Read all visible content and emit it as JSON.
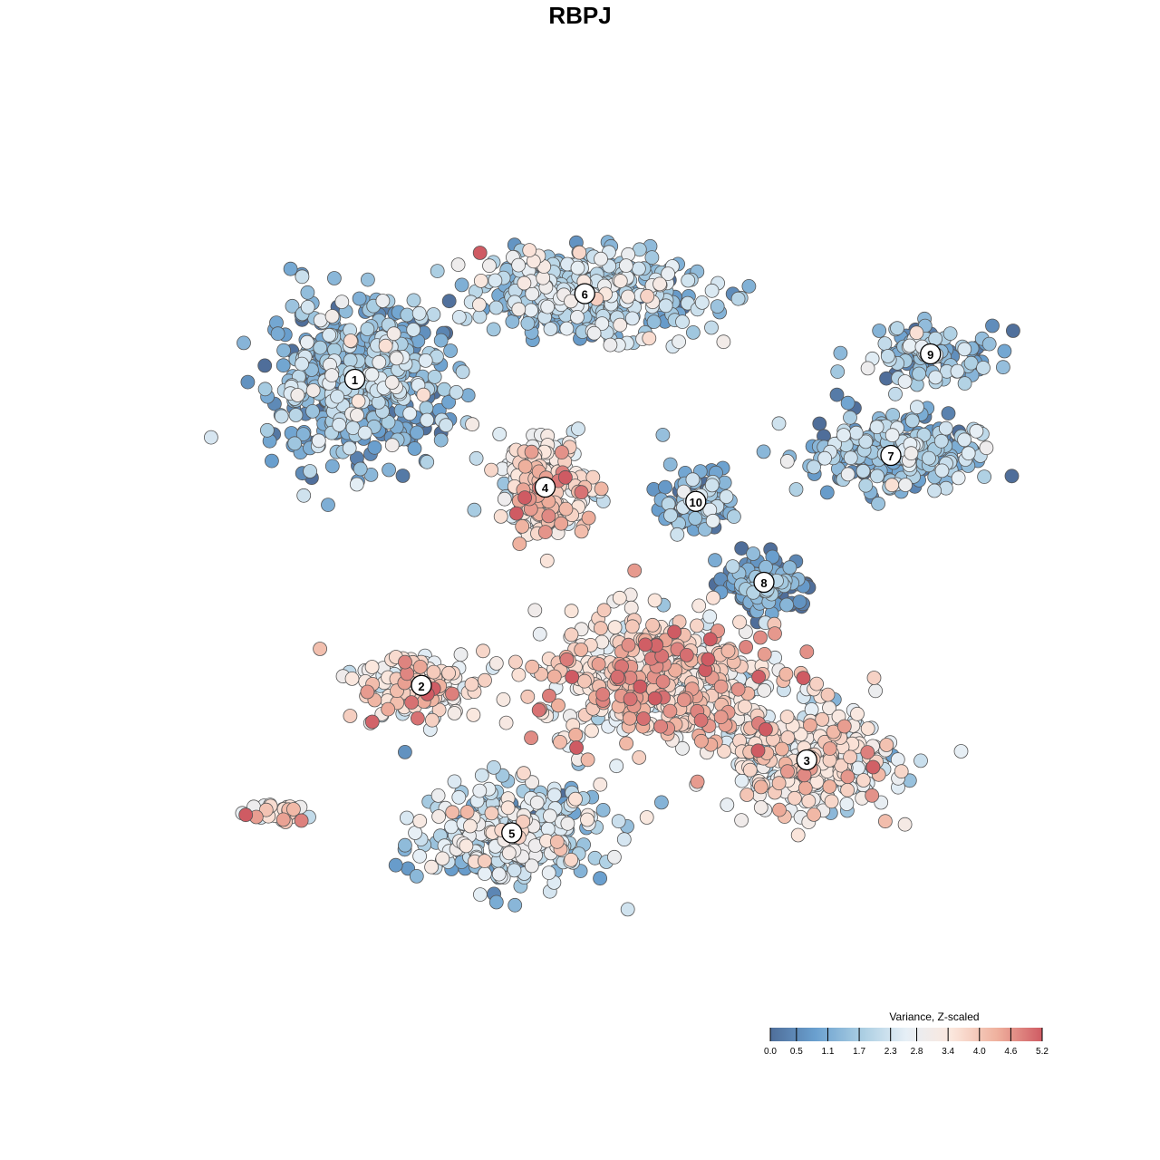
{
  "chart_data": {
    "type": "scatter",
    "title": "RBPJ",
    "xlabel": "",
    "ylabel": "",
    "grid": false,
    "colorbar": {
      "title": "Variance, Z-scaled",
      "ticks": [
        "0.0",
        "0.5",
        "1.1",
        "1.7",
        "2.3",
        "2.8",
        "3.4",
        "4.0",
        "4.6",
        "5.2"
      ],
      "range": [
        0.0,
        5.2
      ],
      "colors": [
        "#4f6e9a",
        "#6aa0cf",
        "#a9cde2",
        "#e6eff6",
        "#fbe7dd",
        "#efb19e",
        "#cf5b63"
      ],
      "placement": "bottom-right"
    },
    "clusters": [
      {
        "label": "1",
        "x": -14.2,
        "y": 13.8,
        "spread": [
          6.5,
          5.8
        ],
        "count": 520,
        "mean_value": 1.25
      },
      {
        "label": "2",
        "x": -10.0,
        "y": -5.5,
        "spread": [
          4.5,
          2.6
        ],
        "count": 150,
        "mean_value": 3.4
      },
      {
        "label": "3",
        "x": 14.3,
        "y": -10.2,
        "spread": [
          6.5,
          3.8
        ],
        "count": 330,
        "mean_value": 2.9
      },
      {
        "label": "4",
        "x": -2.2,
        "y": 7.0,
        "spread": [
          3.4,
          3.6
        ],
        "count": 230,
        "mean_value": 3.3
      },
      {
        "label": "5",
        "x": -4.3,
        "y": -14.8,
        "spread": [
          6.8,
          3.8
        ],
        "count": 360,
        "mean_value": 2.0
      },
      {
        "label": "6",
        "x": 0.3,
        "y": 19.2,
        "spread": [
          9.0,
          3.2
        ],
        "count": 380,
        "mean_value": 1.8
      },
      {
        "label": "7",
        "x": 19.6,
        "y": 9.0,
        "spread": [
          6.5,
          3.0
        ],
        "count": 260,
        "mean_value": 1.3
      },
      {
        "label": "8",
        "x": 11.6,
        "y": 1.0,
        "spread": [
          3.0,
          1.8
        ],
        "count": 170,
        "mean_value": 0.6
      },
      {
        "label": "9",
        "x": 22.1,
        "y": 15.4,
        "spread": [
          5.0,
          2.0
        ],
        "count": 110,
        "mean_value": 1.4
      },
      {
        "label": "10",
        "x": 7.3,
        "y": 6.1,
        "spread": [
          2.5,
          2.8
        ],
        "count": 80,
        "mean_value": 1.2
      },
      {
        "label": "",
        "x": 5.0,
        "y": -5.2,
        "spread": [
          9.0,
          5.0
        ],
        "count": 480,
        "mean_value": 3.6
      },
      {
        "label": "",
        "x": -19.5,
        "y": -13.5,
        "spread": [
          3.2,
          1.0
        ],
        "count": 30,
        "mean_value": 3.2
      }
    ]
  }
}
